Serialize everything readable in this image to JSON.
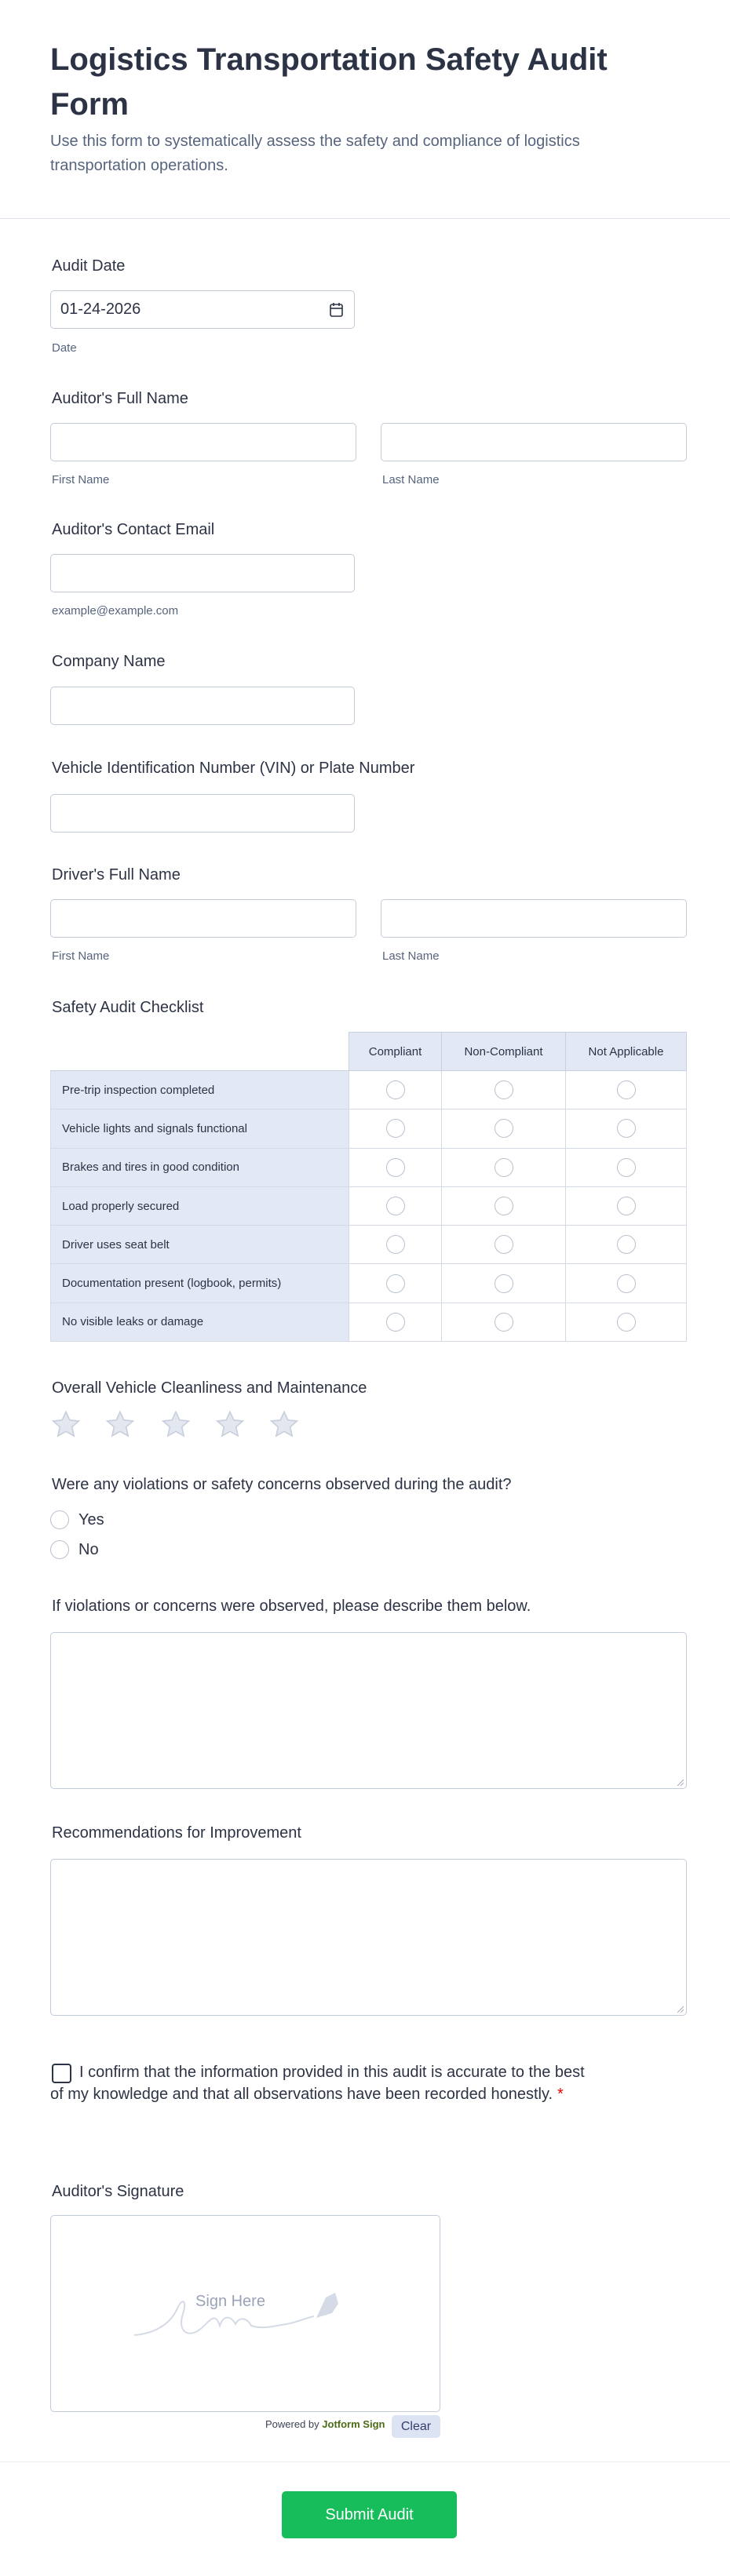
{
  "header": {
    "title": "Logistics Transportation Safety Audit Form",
    "description": "Use this form to systematically assess the safety and compliance of logistics transportation operations."
  },
  "audit_date": {
    "label": "Audit Date",
    "value": "01-24-2026",
    "sublabel": "Date"
  },
  "auditor_name": {
    "label": "Auditor's Full Name",
    "first": "First Name",
    "last": "Last Name"
  },
  "email": {
    "label": "Auditor's Contact Email",
    "sublabel": "example@example.com"
  },
  "company": {
    "label": "Company Name"
  },
  "vin": {
    "label": "Vehicle Identification Number (VIN) or Plate Number"
  },
  "driver_name": {
    "label": "Driver's Full Name",
    "first": "First Name",
    "last": "Last Name"
  },
  "checklist": {
    "label": "Safety Audit Checklist",
    "columns": [
      "Compliant",
      "Non-Compliant",
      "Not Applicable"
    ],
    "rows": [
      "Pre-trip inspection completed",
      "Vehicle lights and signals functional",
      "Brakes and tires in good condition",
      "Load properly secured",
      "Driver uses seat belt",
      "Documentation present (logbook, permits)",
      "No visible leaks or damage"
    ]
  },
  "rating": {
    "label": "Overall Vehicle Cleanliness and Maintenance",
    "max": 5,
    "value": 0,
    "icon": "star-icon"
  },
  "violations": {
    "label": "Were any violations or safety concerns observed during the audit?",
    "options": [
      "Yes",
      "No"
    ]
  },
  "describe": {
    "label": "If violations or concerns were observed, please describe them below."
  },
  "recommendations": {
    "label": "Recommendations for Improvement"
  },
  "confirm": {
    "text": "I confirm that the information provided in this audit is accurate to the best of my knowledge and that all observations have been recorded honestly.",
    "required": "*"
  },
  "signature": {
    "label": "Auditor's Signature",
    "placeholder": "Sign Here",
    "powered_by": "Powered by",
    "brand": "Jotform Sign",
    "clear": "Clear"
  },
  "submit": {
    "label": "Submit Audit"
  },
  "colors": {
    "accent": "#18bd5b",
    "header_bg": "#e3e8f5",
    "border": "#c3cad8",
    "required": "#ee0000"
  }
}
